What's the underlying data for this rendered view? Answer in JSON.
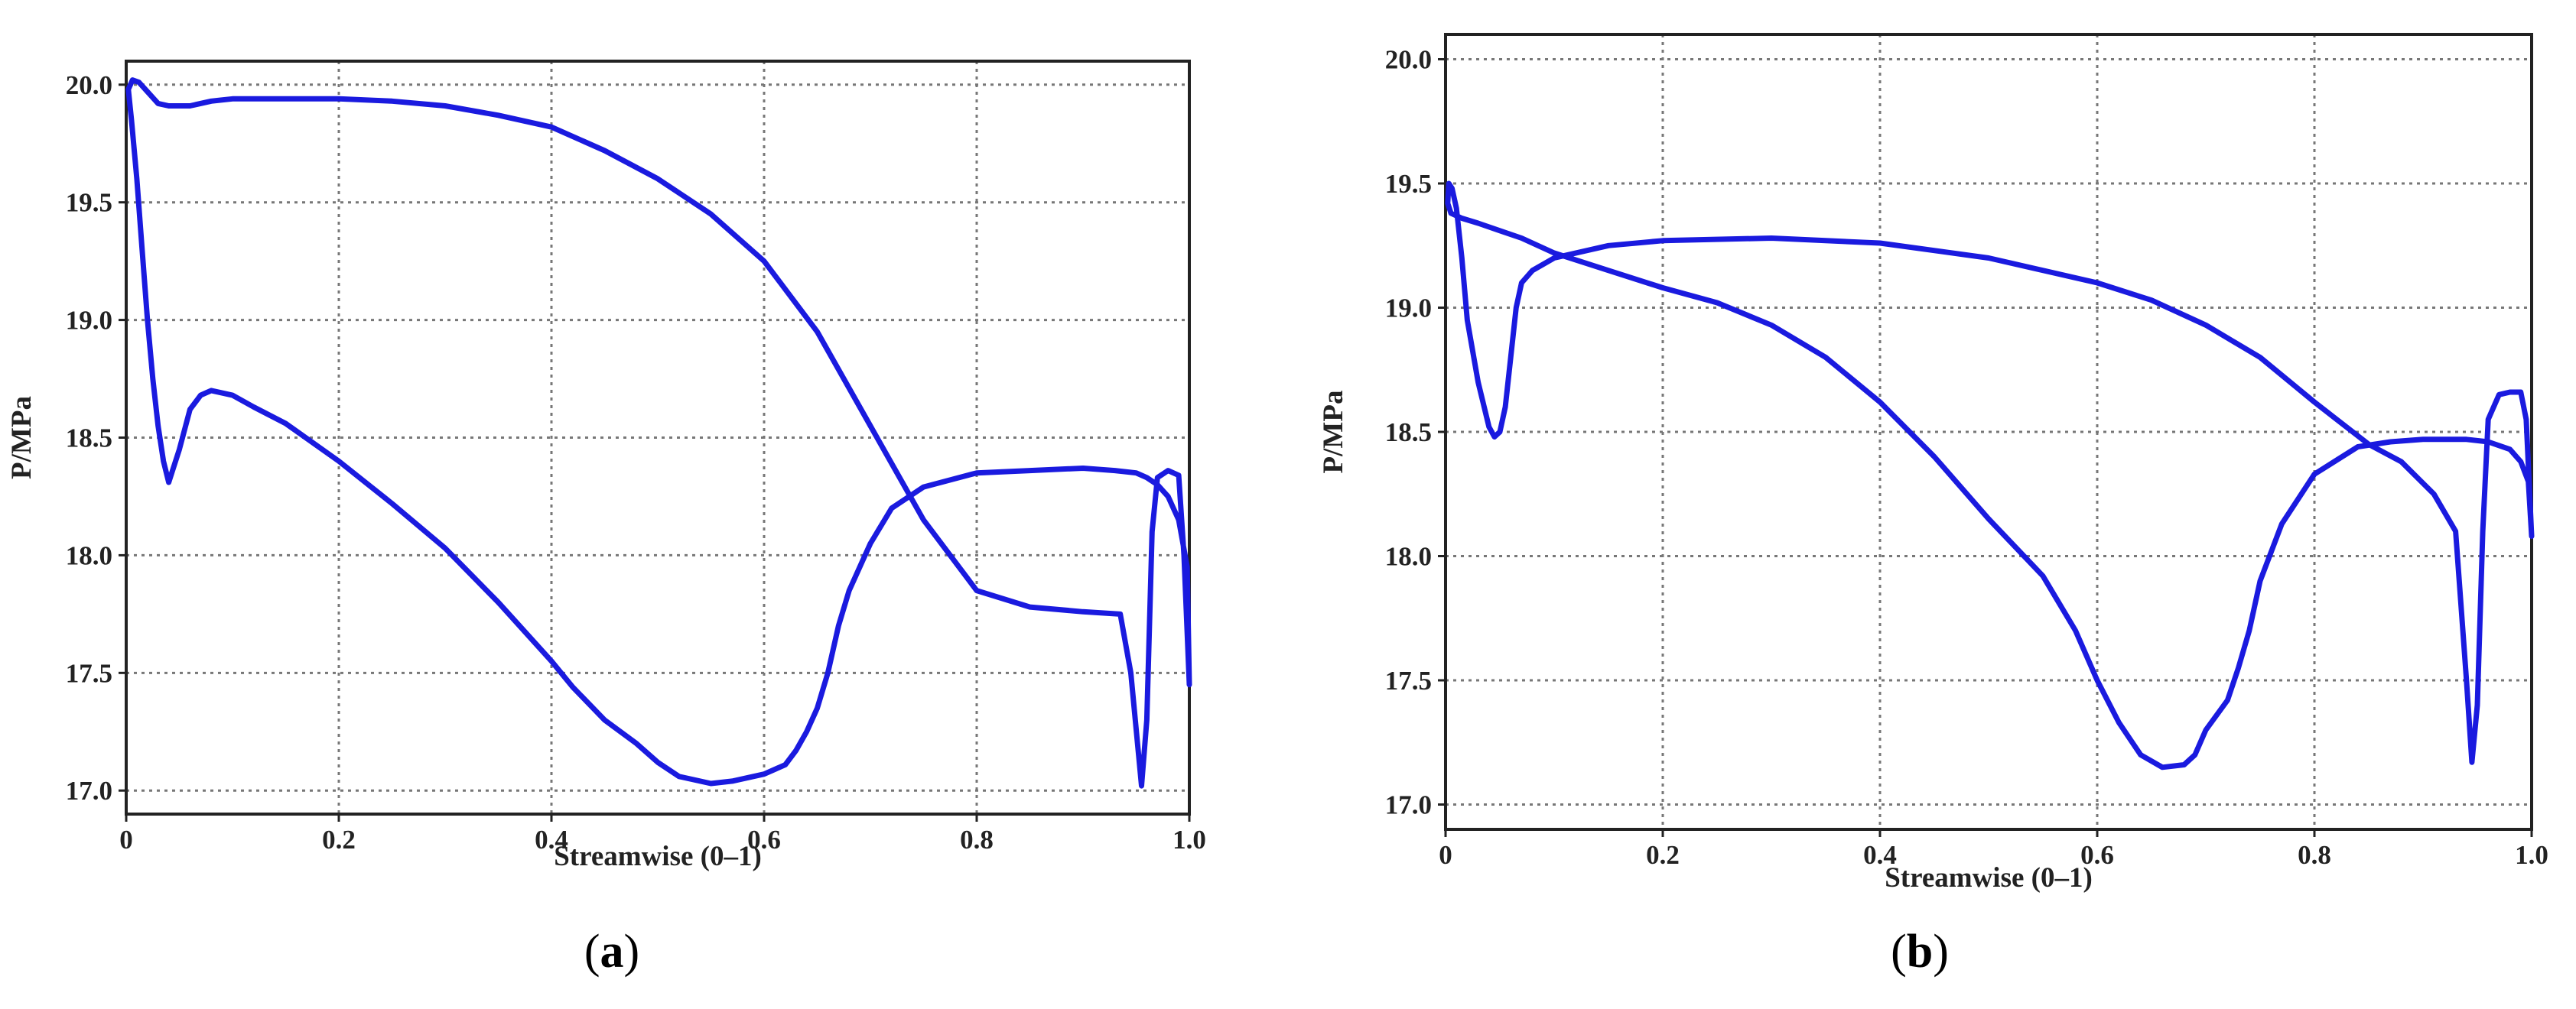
{
  "figure": {
    "panels": [
      "a",
      "b"
    ]
  },
  "chart_data": [
    {
      "panel_label": "a",
      "type": "line",
      "xlabel": "Streamwise (0–1)",
      "ylabel": "P/MPa",
      "xlim": [
        0,
        1
      ],
      "ylim": [
        16.9,
        20.1
      ],
      "xticks": [
        0,
        0.2,
        0.4,
        0.6,
        0.8,
        1.0
      ],
      "xtick_labels": [
        "0",
        "0.2",
        "0.4",
        "0.6",
        "0.8",
        "1.0"
      ],
      "yticks": [
        17.0,
        17.5,
        18.0,
        18.5,
        19.0,
        19.5,
        20.0
      ],
      "ytick_labels": [
        "17.0",
        "17.5",
        "18.0",
        "18.5",
        "19.0",
        "19.5",
        "20.0"
      ],
      "grid": true,
      "line_color": "#1a1adf",
      "series": [
        {
          "points": [
            [
              1.0,
              17.45
            ],
            [
              0.998,
              17.95
            ],
            [
              0.99,
              18.15
            ],
            [
              0.98,
              18.25
            ],
            [
              0.97,
              18.3
            ],
            [
              0.96,
              18.33
            ],
            [
              0.95,
              18.35
            ],
            [
              0.93,
              18.36
            ],
            [
              0.9,
              18.37
            ],
            [
              0.85,
              18.36
            ],
            [
              0.8,
              18.35
            ],
            [
              0.75,
              18.29
            ],
            [
              0.72,
              18.2
            ],
            [
              0.7,
              18.05
            ],
            [
              0.68,
              17.85
            ],
            [
              0.67,
              17.7
            ],
            [
              0.66,
              17.5
            ],
            [
              0.65,
              17.35
            ],
            [
              0.64,
              17.25
            ],
            [
              0.63,
              17.17
            ],
            [
              0.62,
              17.11
            ],
            [
              0.6,
              17.07
            ],
            [
              0.57,
              17.04
            ],
            [
              0.55,
              17.03
            ],
            [
              0.52,
              17.06
            ],
            [
              0.5,
              17.12
            ],
            [
              0.48,
              17.2
            ],
            [
              0.45,
              17.3
            ],
            [
              0.42,
              17.44
            ],
            [
              0.4,
              17.55
            ],
            [
              0.35,
              17.8
            ],
            [
              0.3,
              18.03
            ],
            [
              0.25,
              18.22
            ],
            [
              0.2,
              18.4
            ],
            [
              0.15,
              18.56
            ],
            [
              0.12,
              18.63
            ],
            [
              0.1,
              18.68
            ],
            [
              0.08,
              18.7
            ],
            [
              0.07,
              18.68
            ],
            [
              0.06,
              18.62
            ],
            [
              0.05,
              18.45
            ],
            [
              0.04,
              18.31
            ],
            [
              0.035,
              18.4
            ],
            [
              0.03,
              18.55
            ],
            [
              0.025,
              18.75
            ],
            [
              0.02,
              19.0
            ],
            [
              0.015,
              19.3
            ],
            [
              0.01,
              19.6
            ],
            [
              0.005,
              19.85
            ],
            [
              0.002,
              19.98
            ],
            [
              0.006,
              20.02
            ],
            [
              0.012,
              20.01
            ],
            [
              0.02,
              19.97
            ],
            [
              0.03,
              19.92
            ],
            [
              0.04,
              19.91
            ],
            [
              0.06,
              19.91
            ],
            [
              0.08,
              19.93
            ],
            [
              0.1,
              19.94
            ],
            [
              0.15,
              19.94
            ],
            [
              0.2,
              19.94
            ],
            [
              0.25,
              19.93
            ],
            [
              0.3,
              19.91
            ],
            [
              0.35,
              19.87
            ],
            [
              0.4,
              19.82
            ],
            [
              0.45,
              19.72
            ],
            [
              0.5,
              19.6
            ],
            [
              0.55,
              19.45
            ],
            [
              0.6,
              19.25
            ],
            [
              0.65,
              18.95
            ],
            [
              0.7,
              18.55
            ],
            [
              0.75,
              18.15
            ],
            [
              0.8,
              17.85
            ],
            [
              0.85,
              17.78
            ],
            [
              0.9,
              17.76
            ],
            [
              0.935,
              17.75
            ],
            [
              0.945,
              17.5
            ],
            [
              0.955,
              17.02
            ],
            [
              0.96,
              17.3
            ],
            [
              0.965,
              18.1
            ],
            [
              0.97,
              18.33
            ],
            [
              0.98,
              18.36
            ],
            [
              0.99,
              18.34
            ],
            [
              0.995,
              18.0
            ],
            [
              1.0,
              17.45
            ]
          ]
        }
      ]
    },
    {
      "panel_label": "b",
      "type": "line",
      "xlabel": "Streamwise (0–1)",
      "ylabel": "P/MPa",
      "xlim": [
        0,
        1
      ],
      "ylim": [
        16.9,
        20.1
      ],
      "xticks": [
        0,
        0.2,
        0.4,
        0.6,
        0.8,
        1.0
      ],
      "xtick_labels": [
        "0",
        "0.2",
        "0.4",
        "0.6",
        "0.8",
        "1.0"
      ],
      "yticks": [
        17.0,
        17.5,
        18.0,
        18.5,
        19.0,
        19.5,
        20.0
      ],
      "ytick_labels": [
        "17.0",
        "17.5",
        "18.0",
        "18.5",
        "19.0",
        "19.5",
        "20.0"
      ],
      "grid": true,
      "line_color": "#1a1adf",
      "series": [
        {
          "points": [
            [
              1.0,
              18.08
            ],
            [
              0.997,
              18.3
            ],
            [
              0.99,
              18.38
            ],
            [
              0.98,
              18.43
            ],
            [
              0.96,
              18.46
            ],
            [
              0.94,
              18.47
            ],
            [
              0.9,
              18.47
            ],
            [
              0.87,
              18.46
            ],
            [
              0.84,
              18.44
            ],
            [
              0.8,
              18.33
            ],
            [
              0.77,
              18.13
            ],
            [
              0.75,
              17.9
            ],
            [
              0.74,
              17.7
            ],
            [
              0.73,
              17.55
            ],
            [
              0.72,
              17.42
            ],
            [
              0.7,
              17.3
            ],
            [
              0.69,
              17.2
            ],
            [
              0.68,
              17.16
            ],
            [
              0.66,
              17.15
            ],
            [
              0.64,
              17.2
            ],
            [
              0.62,
              17.33
            ],
            [
              0.6,
              17.5
            ],
            [
              0.58,
              17.7
            ],
            [
              0.55,
              17.92
            ],
            [
              0.5,
              18.15
            ],
            [
              0.45,
              18.4
            ],
            [
              0.4,
              18.62
            ],
            [
              0.35,
              18.8
            ],
            [
              0.3,
              18.93
            ],
            [
              0.25,
              19.02
            ],
            [
              0.2,
              19.08
            ],
            [
              0.15,
              19.15
            ],
            [
              0.1,
              19.22
            ],
            [
              0.07,
              19.28
            ],
            [
              0.05,
              19.31
            ],
            [
              0.03,
              19.34
            ],
            [
              0.015,
              19.36
            ],
            [
              0.005,
              19.38
            ],
            [
              0.002,
              19.42
            ],
            [
              0.003,
              19.5
            ],
            [
              0.006,
              19.48
            ],
            [
              0.01,
              19.4
            ],
            [
              0.015,
              19.2
            ],
            [
              0.02,
              18.95
            ],
            [
              0.03,
              18.7
            ],
            [
              0.04,
              18.52
            ],
            [
              0.045,
              18.48
            ],
            [
              0.05,
              18.5
            ],
            [
              0.055,
              18.6
            ],
            [
              0.06,
              18.8
            ],
            [
              0.065,
              19.0
            ],
            [
              0.07,
              19.1
            ],
            [
              0.08,
              19.15
            ],
            [
              0.1,
              19.2
            ],
            [
              0.15,
              19.25
            ],
            [
              0.2,
              19.27
            ],
            [
              0.3,
              19.28
            ],
            [
              0.35,
              19.27
            ],
            [
              0.4,
              19.26
            ],
            [
              0.5,
              19.2
            ],
            [
              0.6,
              19.1
            ],
            [
              0.65,
              19.03
            ],
            [
              0.7,
              18.93
            ],
            [
              0.75,
              18.8
            ],
            [
              0.8,
              18.62
            ],
            [
              0.85,
              18.45
            ],
            [
              0.88,
              18.38
            ],
            [
              0.91,
              18.25
            ],
            [
              0.93,
              18.1
            ],
            [
              0.94,
              17.5
            ],
            [
              0.945,
              17.17
            ],
            [
              0.95,
              17.4
            ],
            [
              0.955,
              18.1
            ],
            [
              0.96,
              18.55
            ],
            [
              0.97,
              18.65
            ],
            [
              0.98,
              18.66
            ],
            [
              0.99,
              18.66
            ],
            [
              0.995,
              18.55
            ],
            [
              1.0,
              18.08
            ]
          ]
        }
      ]
    }
  ]
}
